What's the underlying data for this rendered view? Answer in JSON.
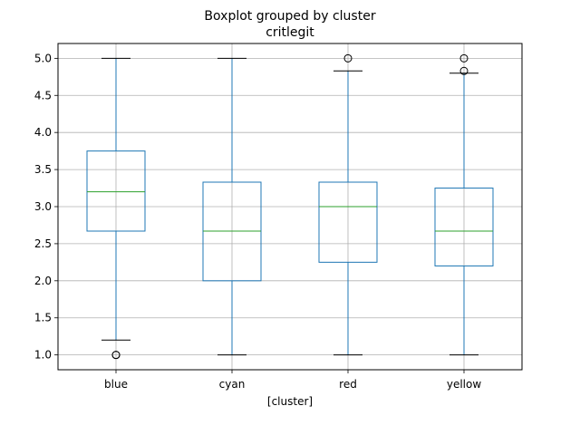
{
  "chart_data": {
    "type": "box",
    "title": "Boxplot grouped by cluster",
    "subtitle": "critlegit",
    "xlabel": "[cluster]",
    "ylabel": "",
    "ylim": [
      0.8,
      5.2
    ],
    "yticks": [
      "1.0",
      "1.5",
      "2.0",
      "2.5",
      "3.0",
      "3.5",
      "4.0",
      "4.5",
      "5.0"
    ],
    "grid": true,
    "categories": [
      "blue",
      "cyan",
      "red",
      "yellow"
    ],
    "boxes": [
      {
        "category": "blue",
        "whisker_low": 1.2,
        "q1": 2.67,
        "median": 3.2,
        "q3": 3.75,
        "whisker_high": 5.0,
        "outliers": [
          1.0,
          1.0
        ]
      },
      {
        "category": "cyan",
        "whisker_low": 1.0,
        "q1": 2.0,
        "median": 2.67,
        "q3": 3.33,
        "whisker_high": 5.0,
        "outliers": []
      },
      {
        "category": "red",
        "whisker_low": 1.0,
        "q1": 2.25,
        "median": 3.0,
        "q3": 3.33,
        "whisker_high": 4.83,
        "outliers": [
          5.0
        ]
      },
      {
        "category": "yellow",
        "whisker_low": 1.0,
        "q1": 2.2,
        "median": 2.67,
        "q3": 3.25,
        "whisker_high": 4.8,
        "outliers": [
          5.0,
          4.83
        ]
      }
    ],
    "colors": {
      "box": "#1f77b4",
      "median": "#2ca02c",
      "grid": "#b0b0b0",
      "outlier": "#000000"
    }
  }
}
